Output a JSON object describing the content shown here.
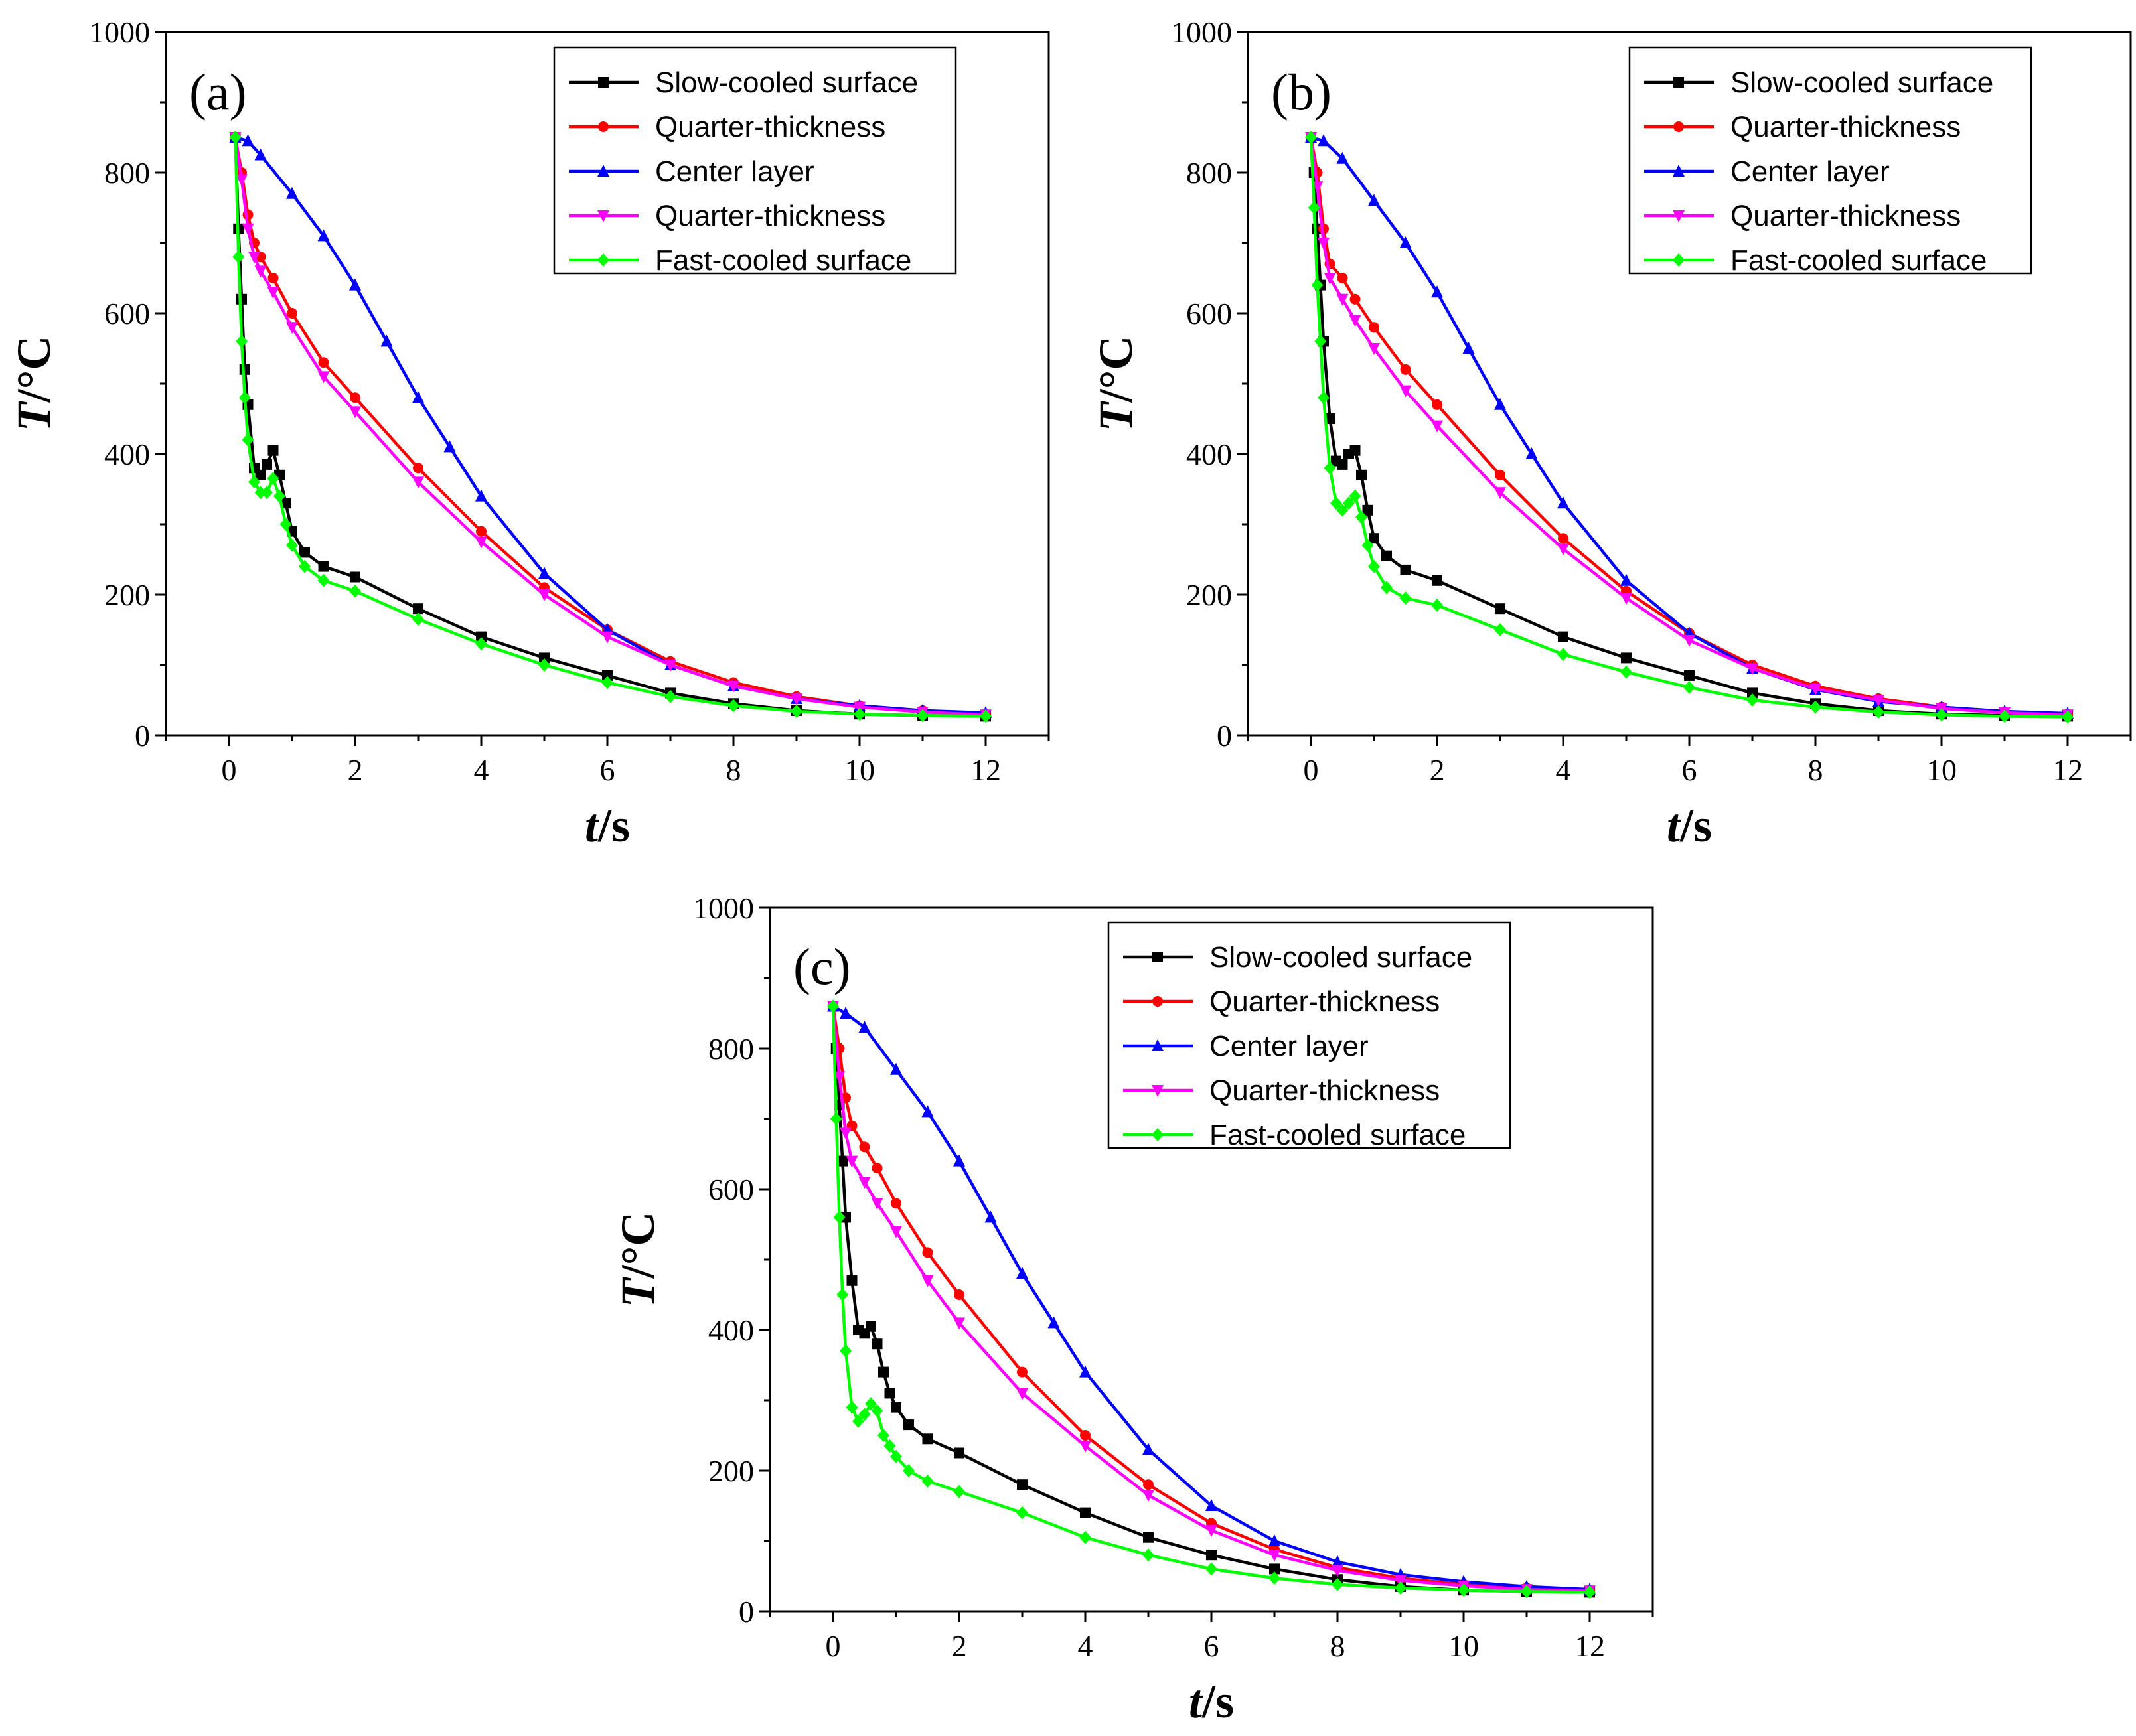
{
  "chart_data": [
    {
      "type": "line",
      "panel_label": "(a)",
      "xlabel": {
        "var": "t",
        "unit": "/s"
      },
      "ylabel": {
        "var": "T",
        "unit": "/°C"
      },
      "xlim": [
        -1,
        13
      ],
      "ylim": [
        0,
        1000
      ],
      "xticks": [
        0,
        2,
        4,
        6,
        8,
        10,
        12
      ],
      "yticks": [
        0,
        200,
        400,
        600,
        800,
        1000
      ],
      "legend_position": "top-right",
      "series": [
        {
          "name": "Slow-cooled surface",
          "color": "#000000",
          "marker": "square",
          "x": [
            0.1,
            0.15,
            0.2,
            0.25,
            0.3,
            0.4,
            0.5,
            0.6,
            0.7,
            0.8,
            0.9,
            1.0,
            1.2,
            1.5,
            2,
            3,
            4,
            5,
            6,
            7,
            8,
            9,
            10,
            11,
            12
          ],
          "y": [
            850,
            720,
            620,
            520,
            470,
            380,
            370,
            385,
            405,
            370,
            330,
            290,
            260,
            240,
            225,
            180,
            140,
            110,
            85,
            60,
            45,
            35,
            30,
            28,
            27
          ]
        },
        {
          "name": "Quarter-thickness",
          "color": "#ff0000",
          "marker": "circle",
          "x": [
            0.1,
            0.2,
            0.3,
            0.4,
            0.5,
            0.7,
            1.0,
            1.5,
            2,
            3,
            4,
            5,
            6,
            7,
            8,
            9,
            10,
            11,
            12
          ],
          "y": [
            850,
            800,
            740,
            700,
            680,
            650,
            600,
            530,
            480,
            380,
            290,
            210,
            150,
            105,
            75,
            55,
            42,
            35,
            30
          ]
        },
        {
          "name": "Center layer",
          "color": "#0000ff",
          "marker": "triangle-up",
          "x": [
            0.1,
            0.3,
            0.5,
            1.0,
            1.5,
            2,
            2.5,
            3,
            3.5,
            4,
            5,
            6,
            7,
            8,
            9,
            10,
            11,
            12
          ],
          "y": [
            850,
            845,
            825,
            770,
            710,
            640,
            560,
            480,
            410,
            340,
            230,
            150,
            100,
            70,
            52,
            42,
            35,
            32
          ]
        },
        {
          "name": "Quarter-thickness",
          "color": "#ff00ff",
          "marker": "triangle-down",
          "x": [
            0.1,
            0.2,
            0.3,
            0.4,
            0.5,
            0.7,
            1.0,
            1.5,
            2,
            3,
            4,
            5,
            6,
            7,
            8,
            9,
            10,
            11,
            12
          ],
          "y": [
            850,
            790,
            720,
            680,
            660,
            630,
            580,
            510,
            460,
            360,
            275,
            200,
            140,
            100,
            70,
            52,
            40,
            33,
            29
          ]
        },
        {
          "name": "Fast-cooled surface",
          "color": "#00ff00",
          "marker": "diamond",
          "x": [
            0.1,
            0.15,
            0.2,
            0.25,
            0.3,
            0.4,
            0.5,
            0.6,
            0.7,
            0.8,
            0.9,
            1.0,
            1.2,
            1.5,
            2,
            3,
            4,
            5,
            6,
            7,
            8,
            9,
            10,
            11,
            12
          ],
          "y": [
            850,
            680,
            560,
            480,
            420,
            360,
            345,
            345,
            365,
            340,
            300,
            270,
            240,
            220,
            205,
            165,
            130,
            100,
            75,
            55,
            42,
            34,
            30,
            28,
            27
          ]
        }
      ]
    },
    {
      "type": "line",
      "panel_label": "(b)",
      "xlabel": {
        "var": "t",
        "unit": "/s"
      },
      "ylabel": {
        "var": "T",
        "unit": "/°C"
      },
      "xlim": [
        -1,
        13
      ],
      "ylim": [
        0,
        1000
      ],
      "xticks": [
        0,
        2,
        4,
        6,
        8,
        10,
        12
      ],
      "yticks": [
        0,
        200,
        400,
        600,
        800,
        1000
      ],
      "legend_position": "top-right",
      "series": [
        {
          "name": "Slow-cooled surface",
          "color": "#000000",
          "marker": "square",
          "x": [
            0,
            0.05,
            0.1,
            0.15,
            0.2,
            0.3,
            0.4,
            0.5,
            0.6,
            0.7,
            0.8,
            0.9,
            1.0,
            1.2,
            1.5,
            2,
            3,
            4,
            5,
            6,
            7,
            8,
            9,
            10,
            11,
            12
          ],
          "y": [
            850,
            800,
            720,
            640,
            560,
            450,
            390,
            385,
            400,
            405,
            370,
            320,
            280,
            255,
            235,
            220,
            180,
            140,
            110,
            85,
            60,
            45,
            35,
            30,
            28,
            27
          ]
        },
        {
          "name": "Quarter-thickness",
          "color": "#ff0000",
          "marker": "circle",
          "x": [
            0,
            0.1,
            0.2,
            0.3,
            0.5,
            0.7,
            1.0,
            1.5,
            2,
            3,
            4,
            5,
            6,
            7,
            8,
            9,
            10,
            11,
            12
          ],
          "y": [
            850,
            800,
            720,
            670,
            650,
            620,
            580,
            520,
            470,
            370,
            280,
            205,
            145,
            100,
            70,
            52,
            40,
            33,
            30
          ]
        },
        {
          "name": "Center layer",
          "color": "#0000ff",
          "marker": "triangle-up",
          "x": [
            0,
            0.2,
            0.5,
            1.0,
            1.5,
            2,
            2.5,
            3,
            3.5,
            4,
            5,
            6,
            7,
            8,
            9,
            10,
            11,
            12
          ],
          "y": [
            850,
            845,
            820,
            760,
            700,
            630,
            550,
            470,
            400,
            330,
            220,
            145,
            95,
            65,
            48,
            40,
            34,
            31
          ]
        },
        {
          "name": "Quarter-thickness",
          "color": "#ff00ff",
          "marker": "triangle-down",
          "x": [
            0,
            0.1,
            0.2,
            0.3,
            0.5,
            0.7,
            1.0,
            1.5,
            2,
            3,
            4,
            5,
            6,
            7,
            8,
            9,
            10,
            11,
            12
          ],
          "y": [
            850,
            780,
            700,
            650,
            620,
            590,
            550,
            490,
            440,
            345,
            265,
            195,
            135,
            95,
            66,
            50,
            38,
            32,
            29
          ]
        },
        {
          "name": "Fast-cooled surface",
          "color": "#00ff00",
          "marker": "diamond",
          "x": [
            0,
            0.05,
            0.1,
            0.15,
            0.2,
            0.3,
            0.4,
            0.5,
            0.6,
            0.7,
            0.8,
            0.9,
            1.0,
            1.2,
            1.5,
            2,
            3,
            4,
            5,
            6,
            7,
            8,
            9,
            10,
            11,
            12
          ],
          "y": [
            850,
            750,
            640,
            560,
            480,
            380,
            330,
            320,
            330,
            340,
            310,
            270,
            240,
            210,
            195,
            185,
            150,
            115,
            90,
            68,
            50,
            40,
            33,
            29,
            27,
            26
          ]
        }
      ]
    },
    {
      "type": "line",
      "panel_label": "(c)",
      "xlabel": {
        "var": "t",
        "unit": "/s"
      },
      "ylabel": {
        "var": "T",
        "unit": "/°C"
      },
      "xlim": [
        -1,
        13
      ],
      "ylim": [
        0,
        1000
      ],
      "xticks": [
        0,
        2,
        4,
        6,
        8,
        10,
        12
      ],
      "yticks": [
        0,
        200,
        400,
        600,
        800,
        1000
      ],
      "legend_position": "top-right",
      "series": [
        {
          "name": "Slow-cooled surface",
          "color": "#000000",
          "marker": "square",
          "x": [
            0,
            0.05,
            0.1,
            0.15,
            0.2,
            0.3,
            0.4,
            0.5,
            0.6,
            0.7,
            0.8,
            0.9,
            1.0,
            1.2,
            1.5,
            2,
            3,
            4,
            5,
            6,
            7,
            8,
            9,
            10,
            11,
            12
          ],
          "y": [
            860,
            800,
            720,
            640,
            560,
            470,
            400,
            395,
            405,
            380,
            340,
            310,
            290,
            265,
            245,
            225,
            180,
            140,
            105,
            80,
            60,
            45,
            35,
            30,
            28,
            27
          ]
        },
        {
          "name": "Quarter-thickness",
          "color": "#ff0000",
          "marker": "circle",
          "x": [
            0,
            0.1,
            0.2,
            0.3,
            0.5,
            0.7,
            1.0,
            1.5,
            2,
            3,
            4,
            5,
            6,
            7,
            8,
            9,
            10,
            11,
            12
          ],
          "y": [
            860,
            800,
            730,
            690,
            660,
            630,
            580,
            510,
            450,
            340,
            250,
            180,
            125,
            88,
            62,
            47,
            38,
            33,
            30
          ]
        },
        {
          "name": "Center layer",
          "color": "#0000ff",
          "marker": "triangle-up",
          "x": [
            0,
            0.2,
            0.5,
            1.0,
            1.5,
            2,
            2.5,
            3,
            3.5,
            4,
            5,
            6,
            7,
            8,
            9,
            10,
            11,
            12
          ],
          "y": [
            860,
            850,
            830,
            770,
            710,
            640,
            560,
            480,
            410,
            340,
            230,
            150,
            100,
            70,
            52,
            42,
            35,
            31
          ]
        },
        {
          "name": "Quarter-thickness",
          "color": "#ff00ff",
          "marker": "triangle-down",
          "x": [
            0,
            0.1,
            0.2,
            0.3,
            0.5,
            0.7,
            1.0,
            1.5,
            2,
            3,
            4,
            5,
            6,
            7,
            8,
            9,
            10,
            11,
            12
          ],
          "y": [
            860,
            760,
            680,
            640,
            610,
            580,
            540,
            470,
            410,
            310,
            235,
            165,
            115,
            80,
            58,
            44,
            36,
            31,
            29
          ]
        },
        {
          "name": "Fast-cooled surface",
          "color": "#00ff00",
          "marker": "diamond",
          "x": [
            0,
            0.05,
            0.1,
            0.15,
            0.2,
            0.3,
            0.4,
            0.5,
            0.6,
            0.7,
            0.8,
            0.9,
            1.0,
            1.2,
            1.5,
            2,
            3,
            4,
            5,
            6,
            7,
            8,
            9,
            10,
            11,
            12
          ],
          "y": [
            860,
            700,
            560,
            450,
            370,
            290,
            270,
            280,
            295,
            285,
            250,
            235,
            220,
            200,
            185,
            170,
            140,
            105,
            80,
            60,
            47,
            38,
            33,
            30,
            28,
            27
          ]
        }
      ]
    }
  ]
}
